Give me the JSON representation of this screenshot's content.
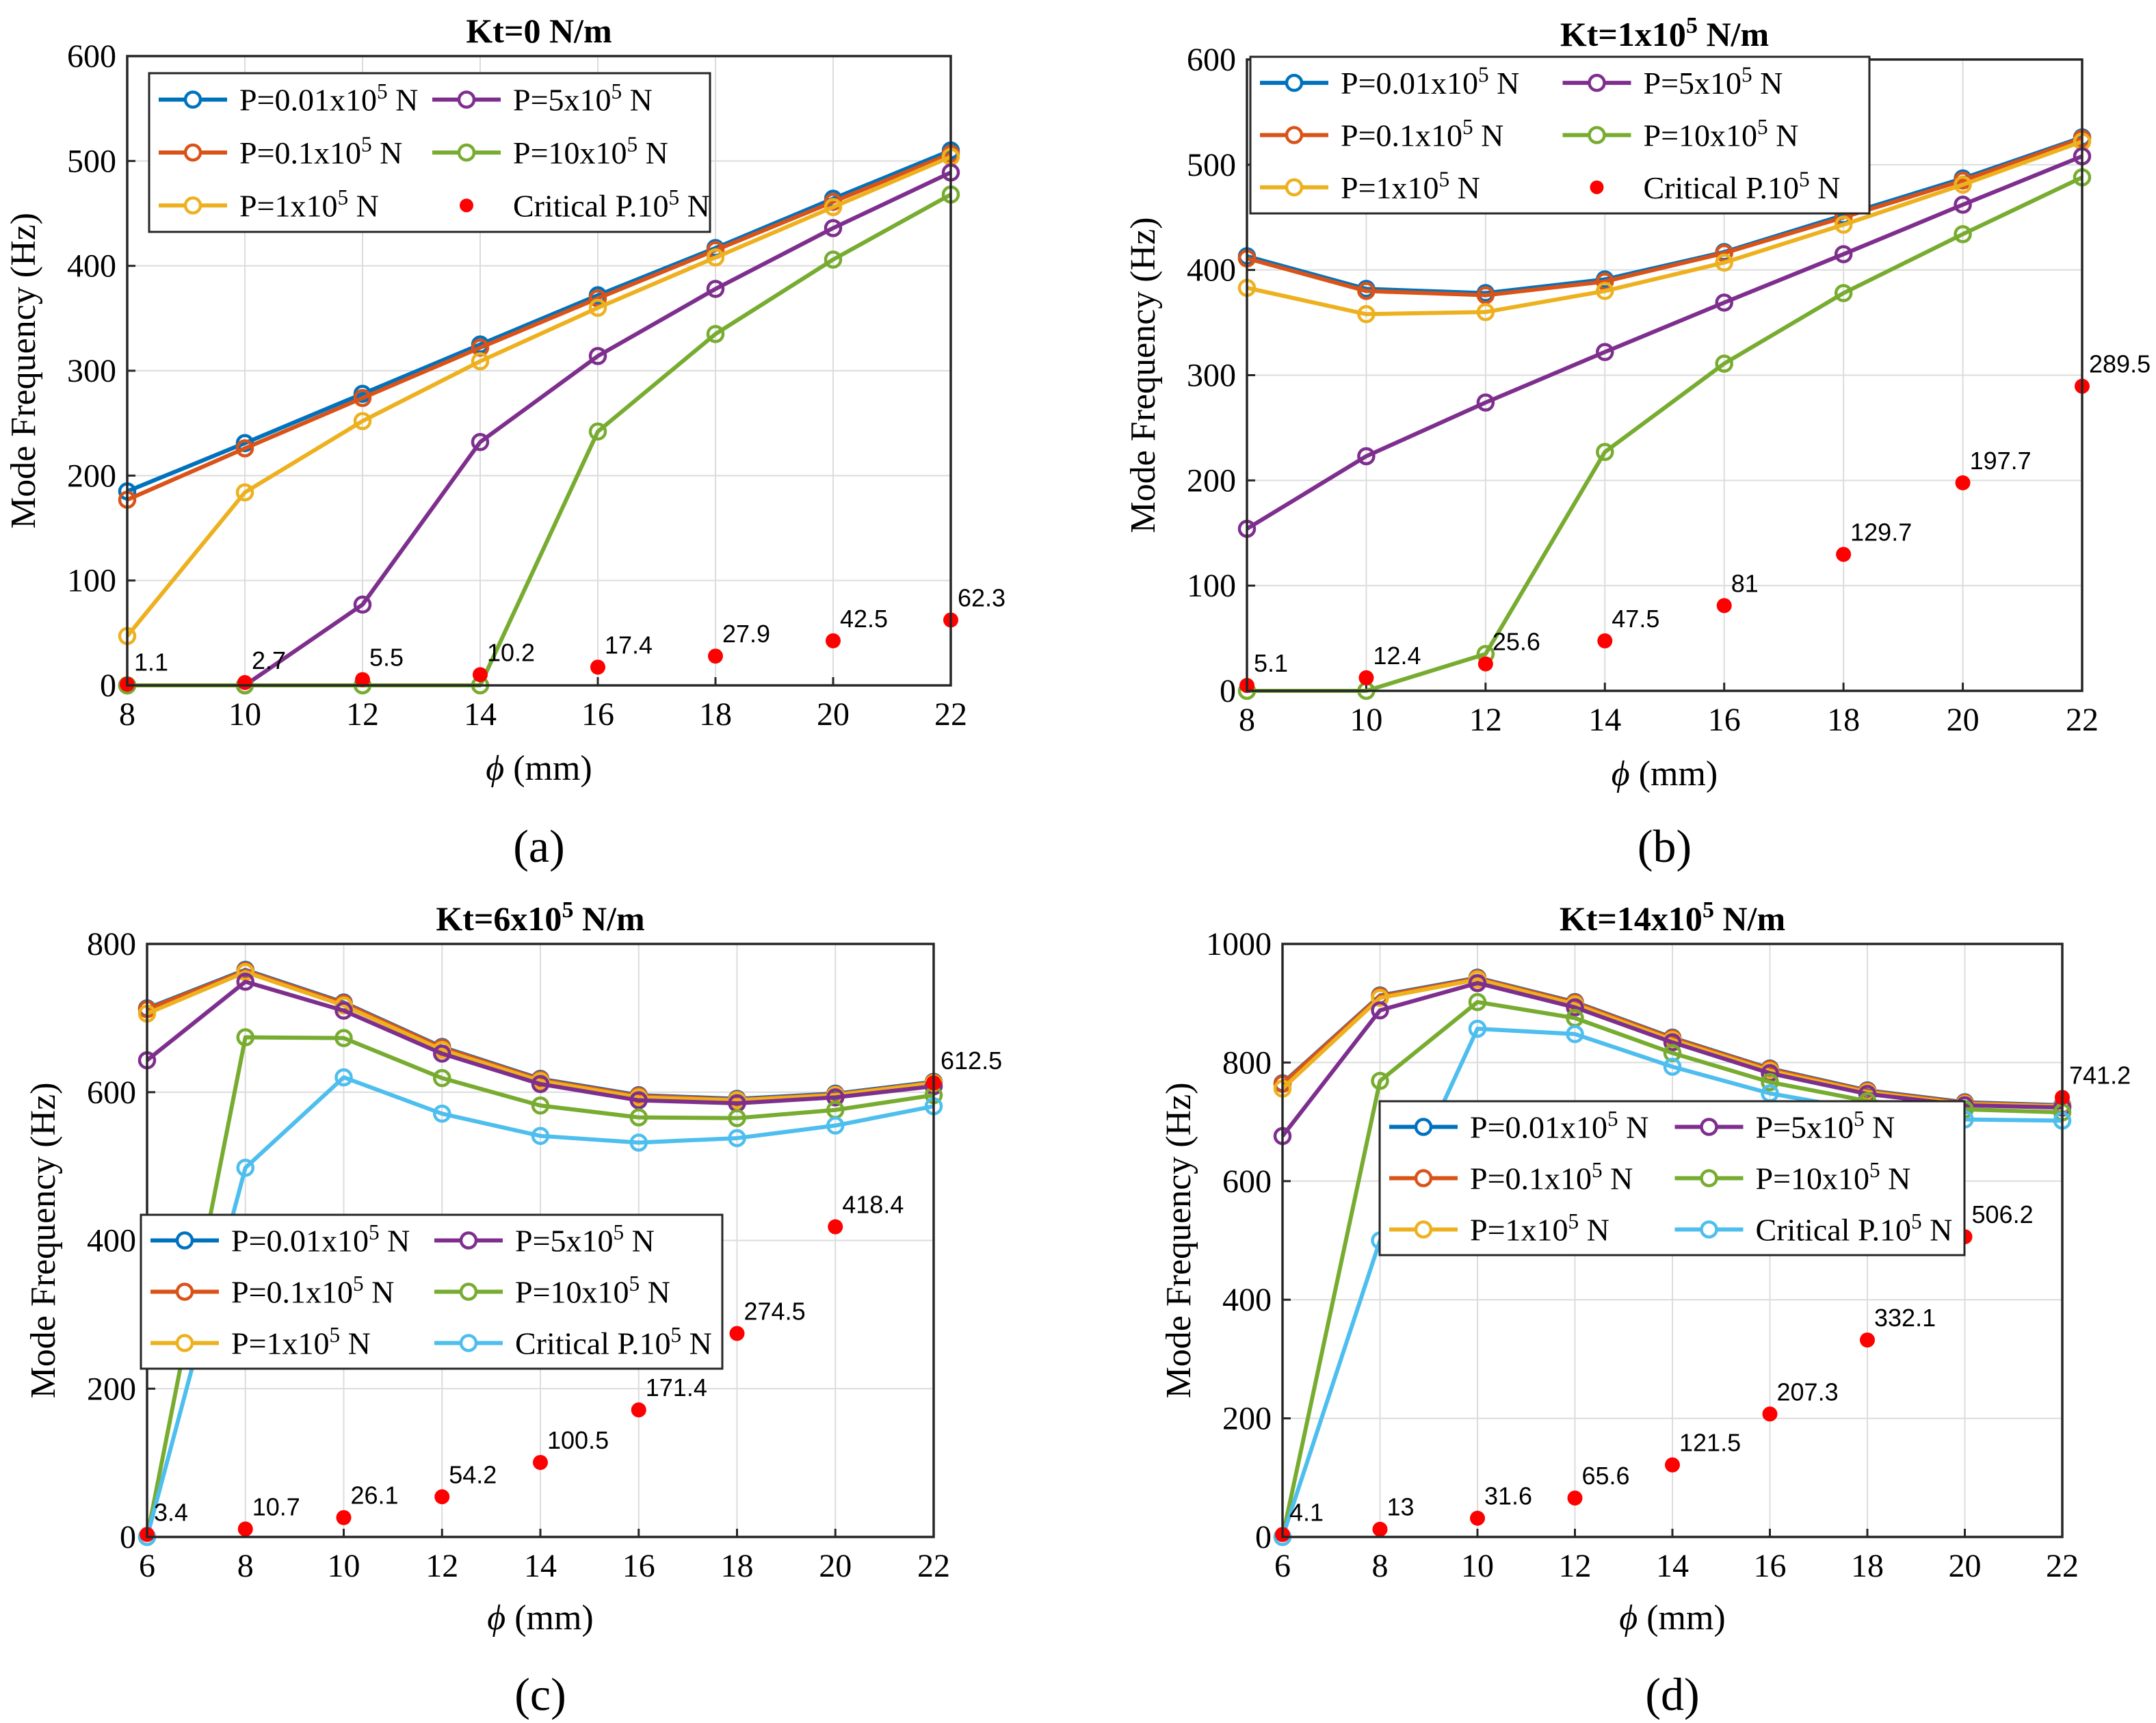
{
  "colors": {
    "s1": "#0072BD",
    "s2": "#D95319",
    "s3": "#EDB120",
    "s4": "#7E2F8E",
    "s5": "#77AC30",
    "s6": "#4DBEEE",
    "critical": "#FF0000",
    "grid": "#DCDCDC",
    "axis": "#262626"
  },
  "chart_data": [
    {
      "id": "a",
      "type": "line",
      "title_parts": [
        "Kt=0 N/m",
        "",
        ""
      ],
      "caption": "(a)",
      "xlabel_symbol": "ϕ",
      "xlabel_unit": " (mm)",
      "ylabel": "Mode Frequency (Hz)",
      "xlim": [
        8,
        22
      ],
      "ylim": [
        0,
        600
      ],
      "xticks": [
        8,
        10,
        12,
        14,
        16,
        18,
        20,
        22
      ],
      "yticks": [
        0,
        100,
        200,
        300,
        400,
        500,
        600
      ],
      "x": [
        8,
        10,
        12,
        14,
        16,
        18,
        20,
        22
      ],
      "legend_position": "top-left",
      "series": [
        {
          "name_parts": [
            "P=0.01x10",
            "5",
            " N"
          ],
          "color_key": "s1",
          "values": [
            185,
            231,
            278,
            325,
            372,
            417,
            464,
            510
          ]
        },
        {
          "name_parts": [
            "P=0.1x10",
            "5",
            " N"
          ],
          "color_key": "s2",
          "values": [
            177,
            226,
            274,
            322,
            369,
            415,
            461,
            507
          ]
        },
        {
          "name_parts": [
            "P=1x10",
            "5",
            " N"
          ],
          "color_key": "s3",
          "values": [
            47,
            184,
            252,
            309,
            360,
            408,
            456,
            504
          ]
        },
        {
          "name_parts": [
            "P=5x10",
            "5",
            " N"
          ],
          "color_key": "s4",
          "values": [
            0,
            0,
            77,
            232,
            314,
            378,
            436,
            489
          ]
        },
        {
          "name_parts": [
            "P=10x10",
            "5",
            " N"
          ],
          "color_key": "s5",
          "values": [
            0,
            0,
            0,
            0,
            242,
            335,
            406,
            468
          ]
        }
      ],
      "legend_extra": {
        "name_parts": [
          "Critical P.10",
          "5",
          " N"
        ],
        "color_key": "critical",
        "marker": "dot"
      },
      "critical": {
        "values": [
          1.1,
          2.7,
          5.5,
          10.2,
          17.4,
          27.9,
          42.5,
          62.3
        ],
        "labels": [
          "1.1",
          "2.7",
          "5.5",
          "10.2",
          "17.4",
          "27.9",
          "42.5",
          "62.3"
        ]
      }
    },
    {
      "id": "b",
      "type": "line",
      "title_parts": [
        "Kt=1x10",
        "5",
        " N/m"
      ],
      "caption": "(b)",
      "xlabel_symbol": "ϕ",
      "xlabel_unit": " (mm)",
      "ylabel": "Mode Frequency (Hz)",
      "xlim": [
        8,
        22
      ],
      "ylim": [
        0,
        600
      ],
      "xticks": [
        8,
        10,
        12,
        14,
        16,
        18,
        20,
        22
      ],
      "yticks": [
        0,
        100,
        200,
        300,
        400,
        500,
        600
      ],
      "x": [
        8,
        10,
        12,
        14,
        16,
        18,
        20,
        22
      ],
      "legend_position": "top-left",
      "series": [
        {
          "name_parts": [
            "P=0.01x10",
            "5",
            " N"
          ],
          "color_key": "s1",
          "values": [
            413,
            382,
            378,
            391,
            417,
            452,
            487,
            526
          ]
        },
        {
          "name_parts": [
            "P=0.1x10",
            "5",
            " N"
          ],
          "color_key": "s2",
          "values": [
            411,
            380,
            376,
            389,
            416,
            450,
            485,
            525
          ]
        },
        {
          "name_parts": [
            "P=1x10",
            "5",
            " N"
          ],
          "color_key": "s3",
          "values": [
            383,
            358,
            360,
            380,
            407,
            443,
            481,
            522
          ]
        },
        {
          "name_parts": [
            "P=5x10",
            "5",
            " N"
          ],
          "color_key": "s4",
          "values": [
            154,
            223,
            274,
            322,
            369,
            415,
            462,
            508
          ]
        },
        {
          "name_parts": [
            "P=10x10",
            "5",
            " N"
          ],
          "color_key": "s5",
          "values": [
            0,
            0,
            35,
            227,
            311,
            378,
            434,
            488
          ]
        }
      ],
      "legend_extra": {
        "name_parts": [
          "Critical P.10",
          "5",
          " N"
        ],
        "color_key": "critical",
        "marker": "dot"
      },
      "critical": {
        "values": [
          5.1,
          12.4,
          25.6,
          47.5,
          81,
          129.7,
          197.7,
          289.5
        ],
        "labels": [
          "5.1",
          "12.4",
          "25.6",
          "47.5",
          "81",
          "129.7",
          "197.7",
          "289.5"
        ]
      }
    },
    {
      "id": "c",
      "type": "line",
      "title_parts": [
        "Kt=6x10",
        "5",
        " N/m"
      ],
      "caption": "(c)",
      "xlabel_symbol": "ϕ",
      "xlabel_unit": " (mm)",
      "ylabel": "Mode Frequency (Hz)",
      "xlim": [
        6,
        22
      ],
      "ylim": [
        0,
        800
      ],
      "xticks": [
        6,
        8,
        10,
        12,
        14,
        16,
        18,
        20,
        22
      ],
      "yticks": [
        0,
        200,
        400,
        600,
        800
      ],
      "x": [
        6,
        8,
        10,
        12,
        14,
        16,
        18,
        20,
        22
      ],
      "legend_position": "center-left",
      "series": [
        {
          "name_parts": [
            "P=0.01x10",
            "5",
            " N"
          ],
          "color_key": "s1",
          "values": [
            713,
            765,
            721,
            661,
            618,
            596,
            591,
            598,
            614
          ]
        },
        {
          "name_parts": [
            "P=0.1x10",
            "5",
            " N"
          ],
          "color_key": "s2",
          "values": [
            712,
            764,
            720,
            660,
            617,
            595,
            590,
            597,
            613
          ]
        },
        {
          "name_parts": [
            "P=1x10",
            "5",
            " N"
          ],
          "color_key": "s3",
          "values": [
            706,
            762,
            717,
            657,
            615,
            593,
            589,
            596,
            612
          ]
        },
        {
          "name_parts": [
            "P=5x10",
            "5",
            " N"
          ],
          "color_key": "s4",
          "values": [
            643,
            749,
            710,
            652,
            611,
            589,
            585,
            593,
            608
          ]
        },
        {
          "name_parts": [
            "P=10x10",
            "5",
            " N"
          ],
          "color_key": "s5",
          "values": [
            0,
            674,
            673,
            619,
            582,
            566,
            565,
            576,
            596
          ]
        },
        {
          "name_parts": [
            "Critical P.10",
            "5",
            " N"
          ],
          "color_key": "s6",
          "values": [
            0,
            498,
            620,
            571,
            541,
            532,
            538,
            555,
            581
          ]
        }
      ],
      "critical": {
        "values": [
          3.4,
          10.7,
          26.1,
          54.2,
          100.5,
          171.4,
          274.5,
          418.4,
          612.5
        ],
        "labels": [
          "3.4",
          "10.7",
          "26.1",
          "54.2",
          "100.5",
          "171.4",
          "274.5",
          "418.4",
          "612.5"
        ]
      }
    },
    {
      "id": "d",
      "type": "line",
      "title_parts": [
        "Kt=14x10",
        "5",
        " N/m"
      ],
      "caption": "(d)",
      "xlabel_symbol": "ϕ",
      "xlabel_unit": " (mm)",
      "ylabel": "Mode Frequency (Hz)",
      "xlim": [
        6,
        22
      ],
      "ylim": [
        0,
        1000
      ],
      "xticks": [
        6,
        8,
        10,
        12,
        14,
        16,
        18,
        20,
        22
      ],
      "yticks": [
        0,
        200,
        400,
        600,
        800,
        1000
      ],
      "x": [
        6,
        8,
        10,
        12,
        14,
        16,
        18,
        20,
        22
      ],
      "legend_position": "center-right",
      "series": [
        {
          "name_parts": [
            "P=0.01x10",
            "5",
            " N"
          ],
          "color_key": "s1",
          "values": [
            765,
            913,
            943,
            902,
            842,
            790,
            753,
            733,
            728
          ]
        },
        {
          "name_parts": [
            "P=0.1x10",
            "5",
            " N"
          ],
          "color_key": "s2",
          "values": [
            764,
            912,
            942,
            901,
            841,
            789,
            752,
            732,
            727
          ]
        },
        {
          "name_parts": [
            "P=1x10",
            "5",
            " N"
          ],
          "color_key": "s3",
          "values": [
            756,
            909,
            940,
            898,
            838,
            786,
            750,
            730,
            726
          ]
        },
        {
          "name_parts": [
            "P=5x10",
            "5",
            " N"
          ],
          "color_key": "s4",
          "values": [
            676,
            888,
            934,
            893,
            834,
            782,
            747,
            728,
            724
          ]
        },
        {
          "name_parts": [
            "P=10x10",
            "5",
            " N"
          ],
          "color_key": "s5",
          "values": [
            0,
            769,
            902,
            875,
            816,
            767,
            735,
            721,
            716
          ]
        },
        {
          "name_parts": [
            "Critical P.10",
            "5",
            " N"
          ],
          "color_key": "s6",
          "values": [
            0,
            500,
            857,
            848,
            793,
            748,
            719,
            704,
            702
          ]
        }
      ],
      "critical": {
        "values": [
          4.1,
          13,
          31.6,
          65.6,
          121.5,
          207.3,
          332.1,
          506.2,
          741.2
        ],
        "labels": [
          "4.1",
          "13",
          "31.6",
          "65.6",
          "121.5",
          "207.3",
          "332.1",
          "506.2",
          "741.2"
        ]
      }
    }
  ]
}
